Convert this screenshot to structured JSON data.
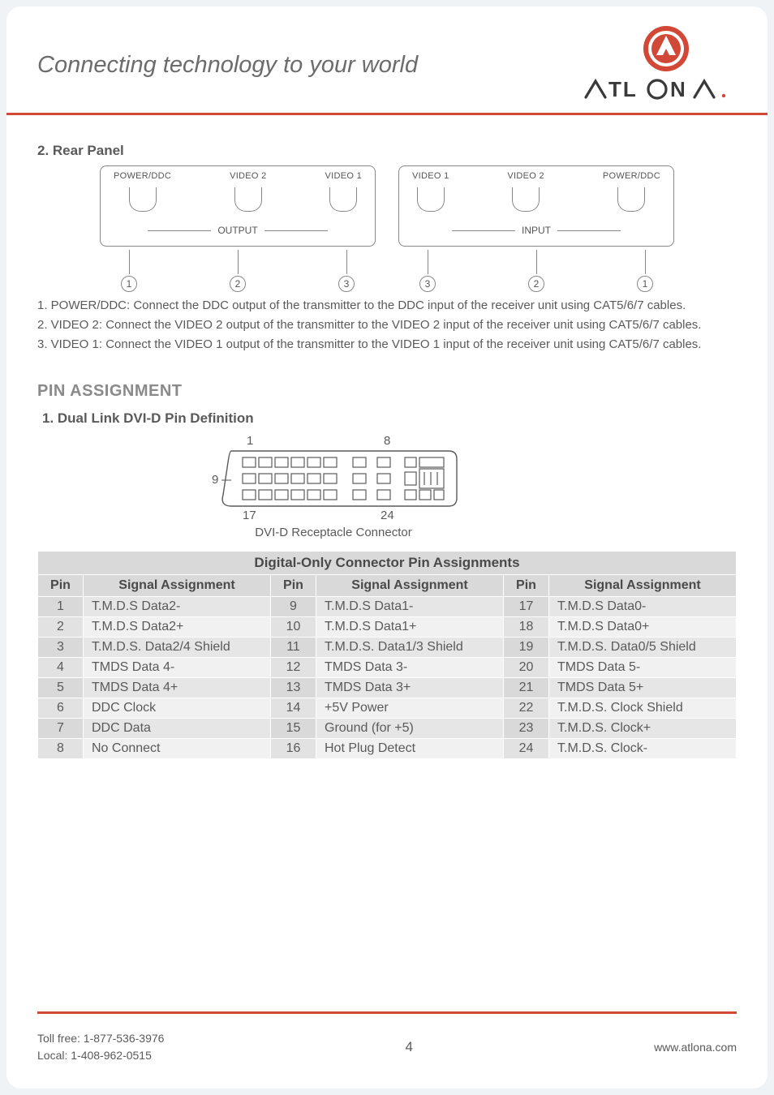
{
  "header": {
    "tagline": "Connecting technology to your world",
    "brand_name": "ATLONA",
    "brand_accent": "#d14836",
    "brand_text_color": "#3a3a3a"
  },
  "rear_panel": {
    "heading": "2. Rear Panel",
    "output_box": {
      "ports": [
        "POWER/DDC",
        "VIDEO 2",
        "VIDEO 1"
      ],
      "group_label": "OUTPUT",
      "callouts": [
        "1",
        "2",
        "3"
      ]
    },
    "input_box": {
      "ports": [
        "VIDEO 1",
        "VIDEO 2",
        "POWER/DDC"
      ],
      "group_label": "INPUT",
      "callouts": [
        "3",
        "2",
        "1"
      ]
    },
    "notes": [
      "1. POWER/DDC: Connect the DDC output of the transmitter to the DDC input of the receiver unit using CAT5/6/7 cables.",
      "2. VIDEO 2: Connect the VIDEO 2 output of the transmitter to the VIDEO 2 input of the receiver unit using CAT5/6/7 cables.",
      "3. VIDEO 1: Connect the VIDEO 1 output of the transmitter to the VIDEO 1 input of the receiver unit using CAT5/6/7 cables."
    ]
  },
  "pin_section": {
    "title": "PIN ASSIGNMENT",
    "subheading": "1. Dual Link DVI-D Pin Definition",
    "diagram_labels": {
      "tl": "1",
      "tr": "8",
      "bl_out": "9",
      "bl": "17",
      "br": "24"
    },
    "caption": "DVI-D Receptacle Connector"
  },
  "pin_table": {
    "title": "Digital-Only Connector Pin Assignments",
    "headers": [
      "Pin",
      "Signal Assignment",
      "Pin",
      "Signal Assignment",
      "Pin",
      "Signal Assignment"
    ],
    "rows": [
      [
        "1",
        "T.M.D.S Data2-",
        "9",
        "T.M.D.S Data1-",
        "17",
        "T.M.D.S Data0-"
      ],
      [
        "2",
        "T.M.D.S Data2+",
        "10",
        "T.M.D.S Data1+",
        "18",
        "T.M.D.S Data0+"
      ],
      [
        "3",
        "T.M.D.S. Data2/4 Shield",
        "11",
        "T.M.D.S. Data1/3 Shield",
        "19",
        "T.M.D.S. Data0/5 Shield"
      ],
      [
        "4",
        "TMDS Data 4-",
        "12",
        "TMDS Data 3-",
        "20",
        "TMDS Data 5-"
      ],
      [
        "5",
        "TMDS Data 4+",
        "13",
        "TMDS Data 3+",
        "21",
        "TMDS Data 5+"
      ],
      [
        "6",
        "DDC Clock",
        "14",
        "+5V Power",
        "22",
        "T.M.D.S. Clock Shield"
      ],
      [
        "7",
        "DDC Data",
        "15",
        "Ground (for +5)",
        "23",
        "T.M.D.S. Clock+"
      ],
      [
        "8",
        "No Connect",
        "16",
        "Hot Plug Detect",
        "24",
        "T.M.D.S. Clock-"
      ]
    ]
  },
  "footer": {
    "toll_free": "Toll free: 1-877-536-3976",
    "local": "Local: 1-408-962-0515",
    "page": "4",
    "url": "www.atlona.com"
  },
  "colors": {
    "rule": "#d14836",
    "page_bg": "#ffffff",
    "outer_bg": "#f0f3f5",
    "text": "#5a5a5a",
    "table_header_bg": "#d9d9d9"
  }
}
